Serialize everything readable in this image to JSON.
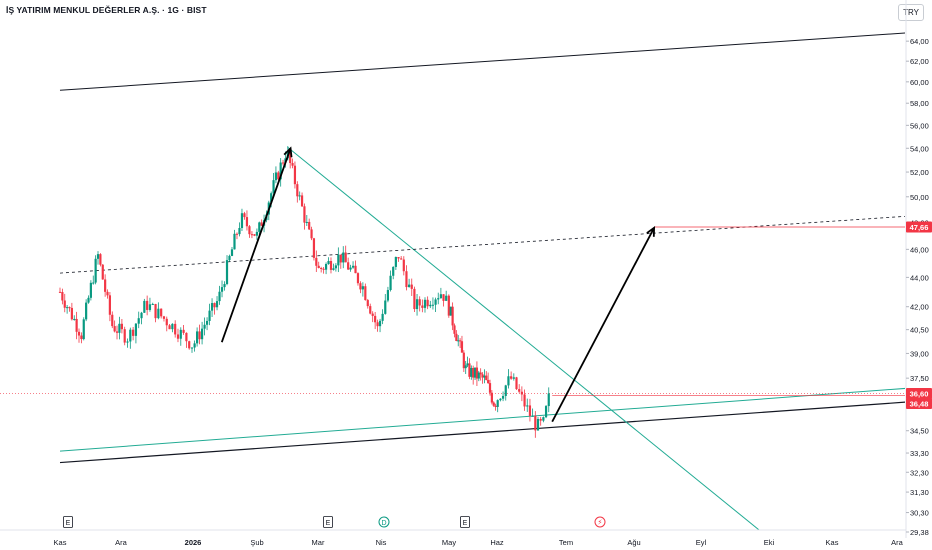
{
  "header": {
    "title": "İŞ YATIRIM MENKUL DEĞERLER A.Ş. · 1G · BIST",
    "currency": "TRY"
  },
  "colors": {
    "up": "#089981",
    "down": "#f23645",
    "trendline": "#22ab94",
    "channel": "#131722",
    "axis_text": "#131722",
    "price_tag": "#f23645"
  },
  "chart_data": {
    "type": "candlestick",
    "title": "İŞ YATIRIM MENKUL DEĞERLER A.Ş. · 1G · BIST",
    "y_scale": "log",
    "ylim": [
      29.38,
      66.5
    ],
    "y_ticks": [
      "29,38",
      "30,30",
      "31,30",
      "32,30",
      "33,30",
      "34,50",
      "36,00",
      "37,50",
      "39,00",
      "40,50",
      "42,00",
      "44,00",
      "46,00",
      "48,00",
      "50,00",
      "52,00",
      "54,00",
      "56,00",
      "58,00",
      "60,00",
      "62,00",
      "64,00"
    ],
    "x_ticks": [
      "Kas",
      "Ara",
      "2026",
      "Şub",
      "Mar",
      "Nis",
      "May",
      "Haz",
      "Tem",
      "Ağu",
      "Eyl",
      "Eki",
      "Kas",
      "Ara"
    ],
    "price_labels": [
      {
        "text": "47,66",
        "value": 47.66
      },
      {
        "text": "36,60",
        "value": 36.6
      },
      {
        "text": "36,48",
        "value": 36.48
      }
    ],
    "events": [
      {
        "label": "E",
        "month": "Ara"
      },
      {
        "label": "E",
        "month": "Mar"
      },
      {
        "label": "D",
        "month": "Nis"
      },
      {
        "label": "E",
        "month": "May"
      },
      {
        "label": "⚡",
        "month": "Tem"
      }
    ],
    "anchors": [
      {
        "month_index": 0,
        "price": 43.0
      },
      {
        "month_index": 0.35,
        "price": 40.2
      },
      {
        "month_index": 0.62,
        "price": 45.6
      },
      {
        "month_index": 0.85,
        "price": 40.8
      },
      {
        "month_index": 1.1,
        "price": 40.0
      },
      {
        "month_index": 1.35,
        "price": 42.2
      },
      {
        "month_index": 1.75,
        "price": 40.6
      },
      {
        "month_index": 2.0,
        "price": 39.5
      },
      {
        "month_index": 2.4,
        "price": 42.5
      },
      {
        "month_index": 2.75,
        "price": 48.3
      },
      {
        "month_index": 3.0,
        "price": 47.0
      },
      {
        "month_index": 3.48,
        "price": 53.8
      },
      {
        "month_index": 3.7,
        "price": 49.8
      },
      {
        "month_index": 4.0,
        "price": 44.5
      },
      {
        "month_index": 4.35,
        "price": 45.5
      },
      {
        "month_index": 4.7,
        "price": 43.5
      },
      {
        "month_index": 4.95,
        "price": 40.5
      },
      {
        "month_index": 5.25,
        "price": 45.7
      },
      {
        "month_index": 5.5,
        "price": 42.0
      },
      {
        "month_index": 5.9,
        "price": 43.0
      },
      {
        "month_index": 6.35,
        "price": 38.0
      },
      {
        "month_index": 6.75,
        "price": 37.4
      },
      {
        "month_index": 6.95,
        "price": 36.0
      },
      {
        "month_index": 7.2,
        "price": 37.5
      },
      {
        "month_index": 7.45,
        "price": 35.6
      },
      {
        "month_index": 7.58,
        "price": 34.7
      },
      {
        "month_index": 7.68,
        "price": 34.9
      },
      {
        "month_index": 7.75,
        "price": 36.5
      }
    ],
    "drawings": {
      "upper_channel": {
        "from": [
          0,
          59.2
        ],
        "to": [
          13.5,
          65.0
        ]
      },
      "lower_channel": {
        "from": [
          0,
          32.8
        ],
        "to": [
          13.5,
          36.2
        ]
      },
      "trendline_1": {
        "from": [
          0,
          33.4
        ],
        "to": [
          13.5,
          37.0
        ]
      },
      "trendline_2": {
        "from": [
          3.5,
          54.1
        ],
        "to": [
          11.0,
          29.1
        ]
      },
      "dashed_line": {
        "from": [
          0,
          44.3
        ],
        "to": [
          13.5,
          48.6
        ]
      },
      "arrow_1": {
        "from": [
          2.45,
          39.7
        ],
        "to": [
          3.55,
          54.0
        ]
      },
      "arrow_2": {
        "from": [
          7.8,
          35.0
        ],
        "to": [
          9.3,
          47.6
        ]
      }
    }
  }
}
